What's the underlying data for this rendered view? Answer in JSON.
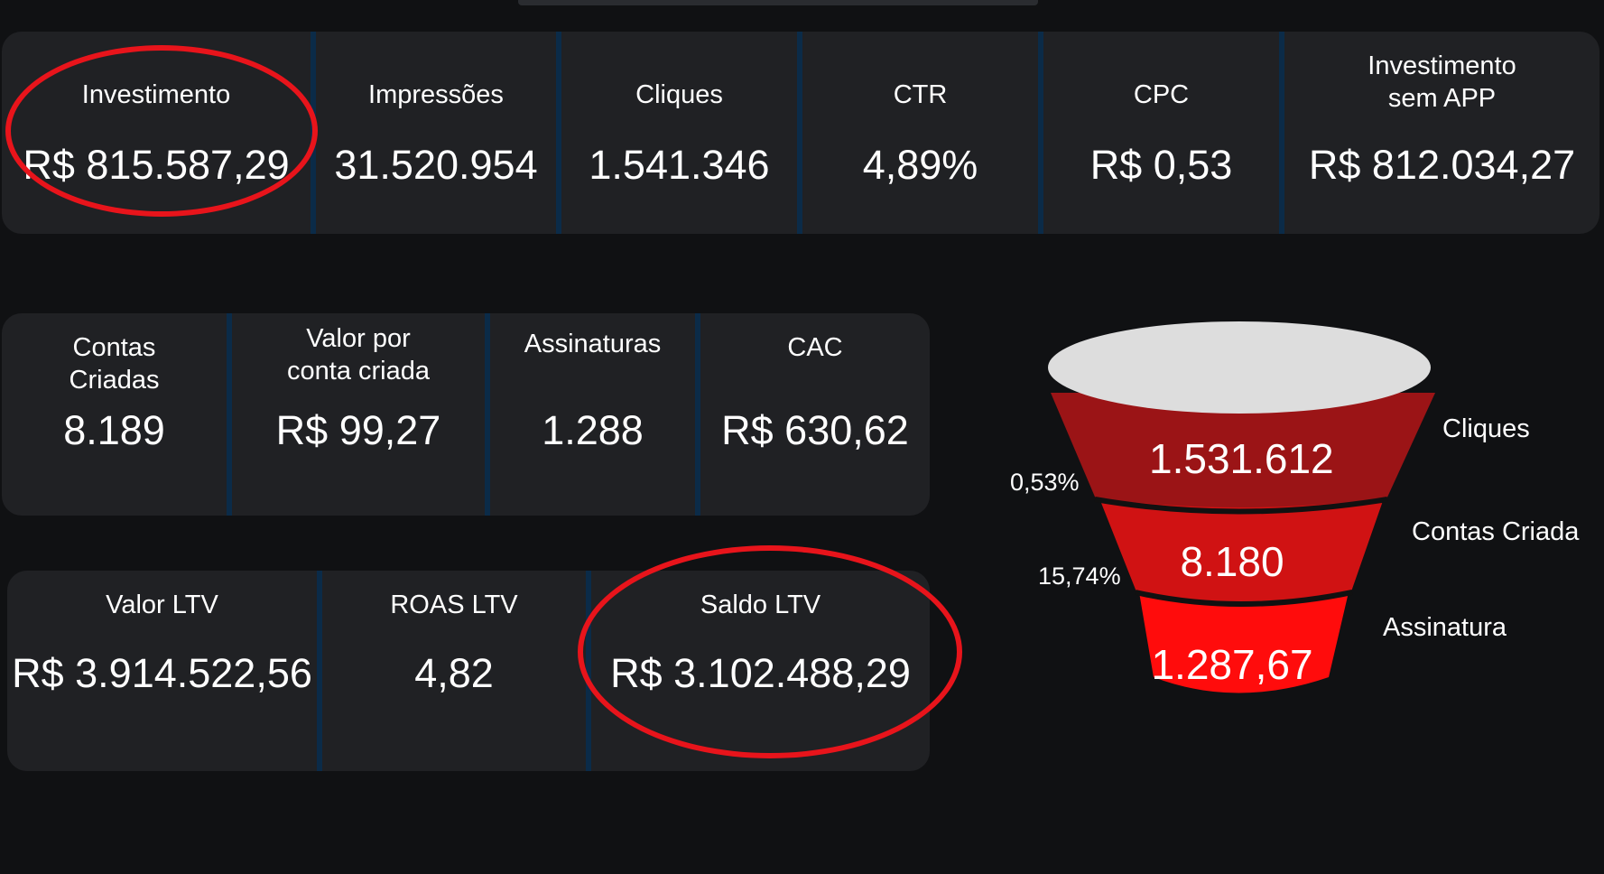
{
  "colors": {
    "background": "#101113",
    "card": "#202124",
    "divider": "#0b2b48",
    "highlight": "#e8141b",
    "funnel_top": "#dddddd",
    "funnel_stage1": "#9b1416",
    "funnel_stage2": "#d01213",
    "funnel_stage3": "#ff0c0c"
  },
  "row1": [
    {
      "label": "Investimento",
      "value": "R$ 815.587,29"
    },
    {
      "label": "Impressões",
      "value": "31.520.954"
    },
    {
      "label": "Cliques",
      "value": "1.541.346"
    },
    {
      "label": "CTR",
      "value": "4,89%"
    },
    {
      "label": "CPC",
      "value": "R$ 0,53"
    },
    {
      "label": "Investimento\nsem  APP",
      "value": "R$ 812.034,27"
    }
  ],
  "row2": [
    {
      "label": "Contas\nCriadas",
      "value": "8.189"
    },
    {
      "label": "Valor por\nconta criada",
      "value": "R$ 99,27"
    },
    {
      "label": "Assinaturas",
      "value": "1.288"
    },
    {
      "label": "CAC",
      "value": "R$ 630,62"
    }
  ],
  "row3": [
    {
      "label": "Valor LTV",
      "value": "R$ 3.914.522,56"
    },
    {
      "label": "ROAS LTV",
      "value": "4,82"
    },
    {
      "label": "Saldo LTV",
      "value": "R$ 3.102.488,29"
    }
  ],
  "funnel": {
    "stages": [
      {
        "name": "Cliques",
        "value": "1.531.612"
      },
      {
        "name": "Contas Criada",
        "value": "8.180"
      },
      {
        "name": "Assinatura",
        "value": "1.287,67"
      }
    ],
    "rates": [
      "0,53%",
      "15,74%"
    ]
  }
}
